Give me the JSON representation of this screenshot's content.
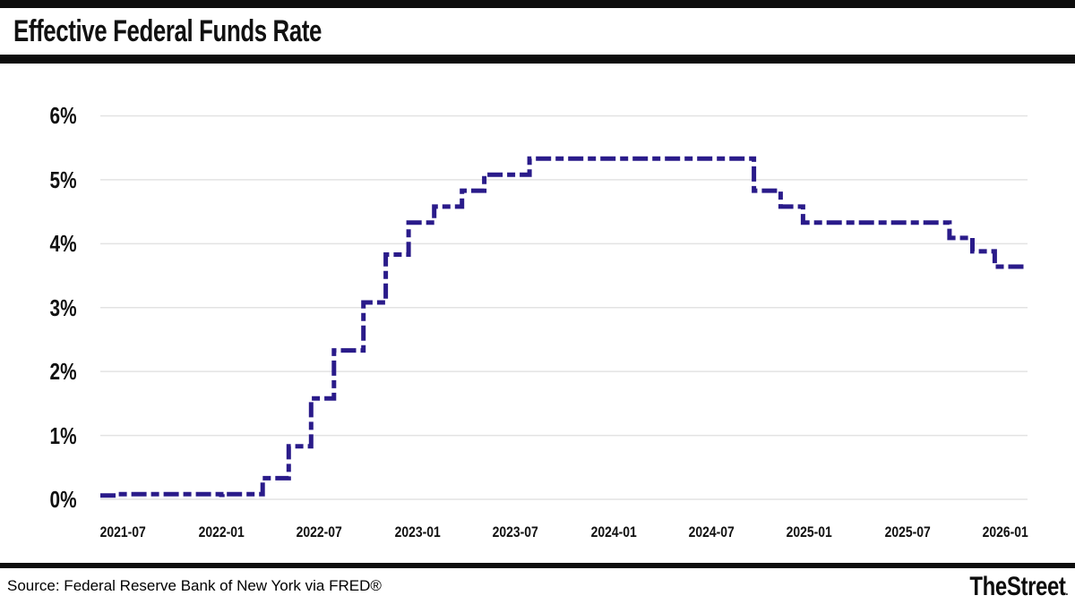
{
  "header": {
    "title": "Effective Federal Funds Rate"
  },
  "footer": {
    "source": "Source: Federal Reserve Bank of New York via FRED®",
    "brand": "TheStreet",
    "brand_dot": "."
  },
  "colors": {
    "line": "#2a1b8a",
    "grid": "#e3e3e3",
    "bars": "#0d0d0d",
    "text": "#111111"
  },
  "chart_data": {
    "type": "line",
    "style": "step-after, dashed stroke",
    "title": "Effective Federal Funds Rate",
    "xlabel": "",
    "ylabel": "",
    "unit": "percent",
    "ylim": [
      0,
      6
    ],
    "grid": "horizontal only",
    "legend_position": "none",
    "x_domain": [
      "2021-05-18",
      "2026-02-10"
    ],
    "y_ticks": [
      {
        "label": "0%",
        "value": 0
      },
      {
        "label": "1%",
        "value": 1
      },
      {
        "label": "2%",
        "value": 2
      },
      {
        "label": "3%",
        "value": 3
      },
      {
        "label": "4%",
        "value": 4
      },
      {
        "label": "5%",
        "value": 5
      },
      {
        "label": "6%",
        "value": 6
      }
    ],
    "x_ticks": [
      {
        "label": "2021-07",
        "date": "2021-07-01"
      },
      {
        "label": "2022-01",
        "date": "2022-01-01"
      },
      {
        "label": "2022-07",
        "date": "2022-07-01"
      },
      {
        "label": "2023-01",
        "date": "2023-01-01"
      },
      {
        "label": "2023-07",
        "date": "2023-07-01"
      },
      {
        "label": "2024-01",
        "date": "2024-01-01"
      },
      {
        "label": "2024-07",
        "date": "2024-07-01"
      },
      {
        "label": "2025-01",
        "date": "2025-01-01"
      },
      {
        "label": "2025-07",
        "date": "2025-07-01"
      },
      {
        "label": "2026-01",
        "date": "2026-01-01"
      }
    ],
    "series": [
      {
        "name": "Effective Federal Funds Rate (%)",
        "points": [
          {
            "date": "2021-05-18",
            "value": 0.06
          },
          {
            "date": "2021-06-17",
            "value": 0.08
          },
          {
            "date": "2021-12-31",
            "value": 0.07
          },
          {
            "date": "2022-01-03",
            "value": 0.08
          },
          {
            "date": "2022-03-17",
            "value": 0.33
          },
          {
            "date": "2022-05-05",
            "value": 0.83
          },
          {
            "date": "2022-06-16",
            "value": 1.58
          },
          {
            "date": "2022-07-28",
            "value": 2.33
          },
          {
            "date": "2022-09-22",
            "value": 3.08
          },
          {
            "date": "2022-11-03",
            "value": 3.83
          },
          {
            "date": "2022-12-15",
            "value": 4.33
          },
          {
            "date": "2023-02-02",
            "value": 4.58
          },
          {
            "date": "2023-03-23",
            "value": 4.83
          },
          {
            "date": "2023-05-04",
            "value": 5.08
          },
          {
            "date": "2023-07-27",
            "value": 5.33
          },
          {
            "date": "2024-09-19",
            "value": 4.83
          },
          {
            "date": "2024-11-08",
            "value": 4.58
          },
          {
            "date": "2024-12-19",
            "value": 4.33
          },
          {
            "date": "2025-09-18",
            "value": 4.09
          },
          {
            "date": "2025-10-30",
            "value": 3.88
          },
          {
            "date": "2025-12-11",
            "value": 3.64
          }
        ]
      }
    ]
  }
}
